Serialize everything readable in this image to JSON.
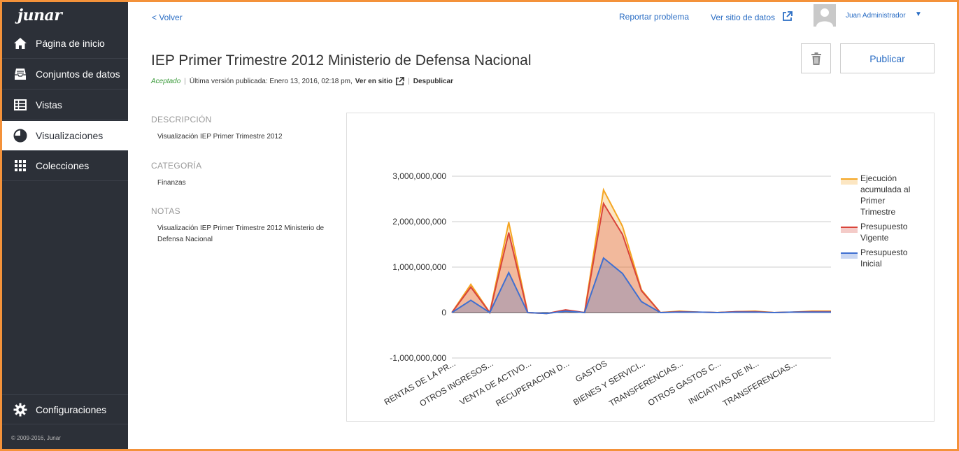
{
  "sidebar": {
    "logo": "junar",
    "items": [
      {
        "label": "Página de inicio",
        "icon": "home-icon"
      },
      {
        "label": "Conjuntos de datos",
        "icon": "inbox-icon"
      },
      {
        "label": "Vistas",
        "icon": "table-icon"
      },
      {
        "label": "Visualizaciones",
        "icon": "pie-chart-icon",
        "active": true
      },
      {
        "label": "Colecciones",
        "icon": "grid-icon"
      }
    ],
    "settings": {
      "label": "Configuraciones",
      "icon": "gear-icon"
    },
    "copyright": "© 2009-2016, Junar"
  },
  "header": {
    "back": "< Volver",
    "report": "Reportar problema",
    "site": "Ver sitio de datos",
    "user": "Juan Administrador",
    "user_caret": "▼"
  },
  "resource": {
    "title": "IEP Primer Trimestre 2012 Ministerio de Defensa Nacional",
    "status": "Aceptado",
    "published": "Última versión publicada: Enero 13, 2016, 02:18 pm,",
    "view_site": "Ver en sitio",
    "unpublish": "Despublicar",
    "publish_button": "Publicar"
  },
  "info": {
    "description_head": "DESCRIPCIÓN",
    "description": "Visualización IEP Primer Trimestre 2012",
    "category_head": "CATEGORÍA",
    "category": "Finanzas",
    "notes_head": "NOTAS",
    "notes": "Visualización IEP Primer Trimestre 2012 Ministerio de Defensa Nacional"
  },
  "chart_data": {
    "type": "area",
    "categories": [
      "RENTAS DE LA PR...",
      "",
      "OTROS INGRESOS...",
      "",
      "VENTA DE ACTIVO...",
      "",
      "RECUPERACION D...",
      "",
      "",
      "GASTOS",
      "",
      "BIENES Y SERVICI...",
      "",
      "TRANSFERENCIAS...",
      "",
      "OTROS GASTOS C...",
      "",
      "INICIATIVAS DE IN...",
      "",
      "TRANSFERENCIAS...",
      ""
    ],
    "series": [
      {
        "name": "Ejecución acumulada al Primer Trimestre",
        "color": "#f5a623",
        "values": [
          0,
          620000000,
          0,
          1990000000,
          0,
          -20000000,
          40000000,
          0,
          2700000000,
          1900000000,
          500000000,
          0,
          30000000,
          10000000,
          0,
          20000000,
          30000000,
          0,
          10000000,
          30000000,
          30000000
        ]
      },
      {
        "name": "Presupuesto Vigente",
        "color": "#d9443a",
        "values": [
          0,
          560000000,
          0,
          1760000000,
          0,
          -20000000,
          60000000,
          0,
          2400000000,
          1720000000,
          480000000,
          0,
          20000000,
          10000000,
          0,
          20000000,
          20000000,
          0,
          10000000,
          20000000,
          20000000
        ]
      },
      {
        "name": "Presupuesto Inicial",
        "color": "#3f6fd1",
        "values": [
          0,
          270000000,
          0,
          880000000,
          0,
          -20000000,
          30000000,
          0,
          1200000000,
          860000000,
          240000000,
          0,
          10000000,
          10000000,
          0,
          10000000,
          10000000,
          0,
          10000000,
          10000000,
          10000000
        ]
      }
    ],
    "x_labels": [
      "RENTAS DE LA PR...",
      "OTROS INGRESOS...",
      "VENTA DE ACTIVO...",
      "RECUPERACION D...",
      "GASTOS",
      "BIENES Y SERVICI...",
      "TRANSFERENCIAS...",
      "OTROS GASTOS C...",
      "INICIATIVAS DE IN...",
      "TRANSFERENCIAS..."
    ],
    "yticks": [
      -1000000000,
      0,
      1000000000,
      2000000000,
      3000000000
    ],
    "ytick_labels": [
      "-1,000,000,000",
      "0",
      "1,000,000,000",
      "2,000,000,000",
      "3,000,000,000"
    ],
    "ylim": [
      -1000000000,
      3000000000
    ],
    "legend_position": "right",
    "grid": true
  }
}
